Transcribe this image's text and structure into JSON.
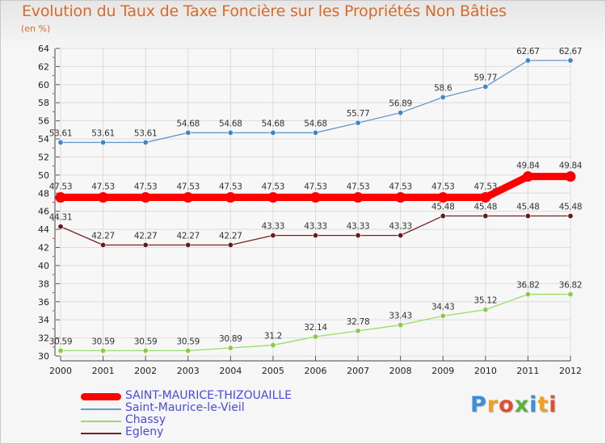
{
  "title": "Evolution du Taux de Taxe Foncière sur les Propriétés Non Bâties",
  "subtitle": "(en %)",
  "logo_text": "Proxiti",
  "chart_data": {
    "type": "line",
    "title": "Evolution du Taux de Taxe Foncière sur les Propriétés Non Bâties",
    "ylabel": "(en %)",
    "xlabel": "",
    "ylim": [
      30,
      64
    ],
    "yticks": [
      30,
      32,
      34,
      36,
      38,
      40,
      42,
      44,
      46,
      48,
      50,
      52,
      54,
      56,
      58,
      60,
      62,
      64
    ],
    "categories": [
      "2000",
      "2001",
      "2002",
      "2003",
      "2004",
      "2005",
      "2006",
      "2007",
      "2008",
      "2009",
      "2010",
      "2011",
      "2012"
    ],
    "grid": true,
    "series": [
      {
        "name": "Saint-Maurice-le-Vieil",
        "color": "#6699cc",
        "point_color": "#3d87c9",
        "values": [
          53.61,
          53.61,
          53.61,
          54.68,
          54.68,
          54.68,
          54.68,
          55.77,
          56.89,
          58.6,
          59.77,
          62.67,
          62.67
        ],
        "labels": [
          "53.61",
          "53.61",
          "53.61",
          "54.68",
          "54.68",
          "54.68",
          "54.68",
          "55.77",
          "56.89",
          "58.6",
          "59.77",
          "62.67",
          "62.67"
        ]
      },
      {
        "name": "SAINT-MAURICE-THIZOUAILLE",
        "color": "#ff0000",
        "point_color": "#ff0000",
        "values": [
          47.53,
          47.53,
          47.53,
          47.53,
          47.53,
          47.53,
          47.53,
          47.53,
          47.53,
          47.53,
          47.53,
          49.84,
          49.84
        ],
        "labels": [
          "47.53",
          "47.53",
          "47.53",
          "47.53",
          "47.53",
          "47.53",
          "47.53",
          "47.53",
          "47.53",
          "47.53",
          "47.53",
          "49.84",
          "49.84"
        ]
      },
      {
        "name": "Egleny",
        "color": "#772222",
        "point_color": "#661a1a",
        "values": [
          44.31,
          42.27,
          42.27,
          42.27,
          42.27,
          43.33,
          43.33,
          43.33,
          43.33,
          45.48,
          45.48,
          45.48,
          45.48
        ],
        "labels": [
          "44.31",
          "42.27",
          "42.27",
          "42.27",
          "42.27",
          "43.33",
          "43.33",
          "43.33",
          "43.33",
          "45.48",
          "45.48",
          "45.48",
          "45.48"
        ]
      },
      {
        "name": "Chassy",
        "color": "#99dd66",
        "point_color": "#88cc44",
        "values": [
          30.59,
          30.59,
          30.59,
          30.59,
          30.89,
          31.2,
          32.14,
          32.78,
          33.43,
          34.43,
          35.12,
          36.82,
          36.82
        ],
        "labels": [
          "30.59",
          "30.59",
          "30.59",
          "30.59",
          "30.89",
          "31.2",
          "32.14",
          "32.78",
          "33.43",
          "34.43",
          "35.12",
          "36.82",
          "36.82"
        ]
      }
    ],
    "legend": [
      {
        "name": "SAINT-MAURICE-THIZOUAILLE",
        "color": "#ff0000",
        "thick": true
      },
      {
        "name": "Saint-Maurice-le-Vieil",
        "color": "#6699cc",
        "thick": false
      },
      {
        "name": "Chassy",
        "color": "#99dd66",
        "thick": false
      },
      {
        "name": "Egleny",
        "color": "#772222",
        "thick": false
      }
    ],
    "legend_position": "bottom-left"
  }
}
